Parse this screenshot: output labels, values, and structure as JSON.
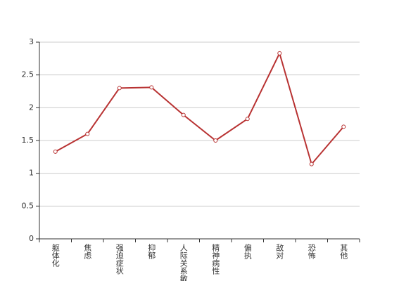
{
  "chart_data": {
    "type": "line",
    "categories": [
      "躯体化",
      "焦虑",
      "强迫症状",
      "抑郁",
      "人际关系敏感",
      "精神病性",
      "偏执",
      "敌对",
      "恐怖",
      "其他"
    ],
    "values": [
      1.33,
      1.6,
      2.3,
      2.31,
      1.89,
      1.5,
      1.83,
      2.83,
      1.14,
      1.71
    ],
    "color": "#b83232",
    "ylim": [
      0,
      3
    ],
    "yticks": [
      0,
      0.5,
      1,
      1.5,
      2,
      2.5,
      3
    ],
    "grid": true
  }
}
